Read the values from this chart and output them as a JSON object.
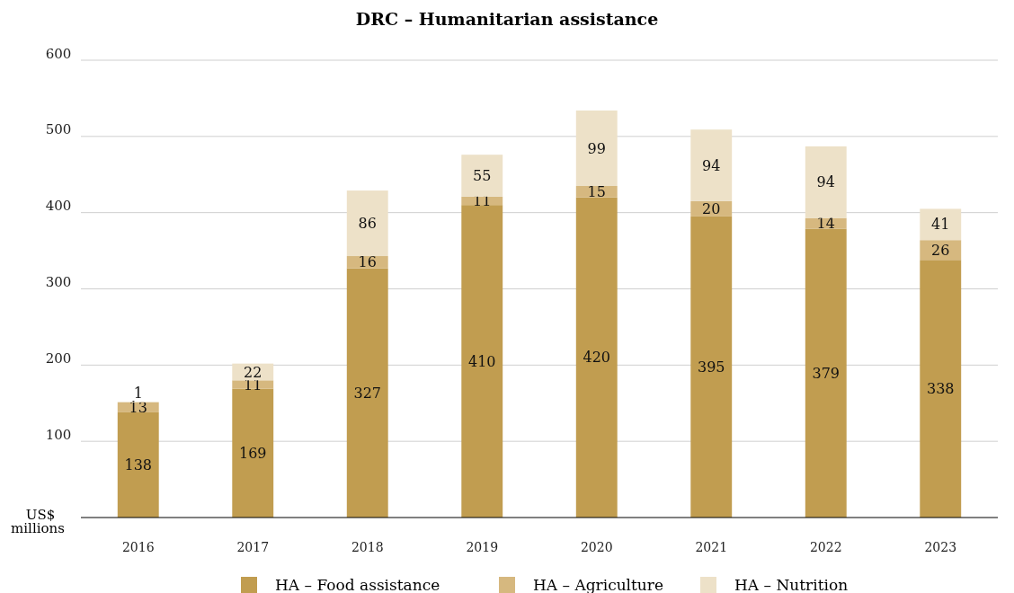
{
  "chart_data": {
    "type": "bar",
    "title": "DRC – Humanitarian assistance",
    "ylabel": "US$ millions",
    "categories": [
      "2016",
      "2017",
      "2018",
      "2019",
      "2020",
      "2021",
      "2022",
      "2023"
    ],
    "series": [
      {
        "name": "HA – Food assistance",
        "color": "#c19d50",
        "values": [
          138,
          169,
          327,
          410,
          420,
          395,
          379,
          338
        ]
      },
      {
        "name": "HA – Agriculture",
        "color": "#d6b87f",
        "values": [
          13,
          11,
          16,
          11,
          15,
          20,
          14,
          26
        ]
      },
      {
        "name": "HA – Nutrition",
        "color": "#ede1c8",
        "values": [
          1,
          22,
          86,
          55,
          99,
          94,
          94,
          41
        ]
      }
    ],
    "stacked": true,
    "ylim": [
      0,
      600
    ],
    "yticks": [
      100,
      200,
      300,
      400,
      500,
      600
    ],
    "grid": "y",
    "legend": "bottom",
    "data_labels": true
  }
}
